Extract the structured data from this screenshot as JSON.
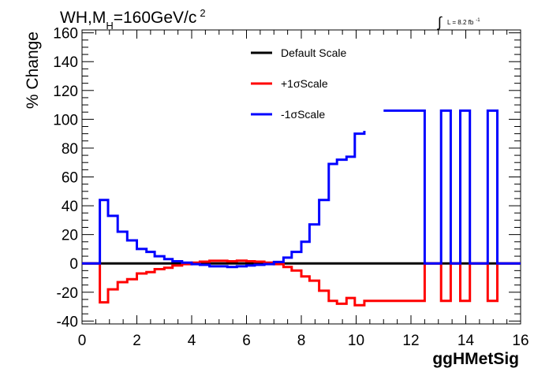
{
  "title": {
    "prefix": "WH,M",
    "subscript": "H",
    "suffix": "=160GeV/c",
    "superscript": "2"
  },
  "lumi": {
    "integral_symbol": "∫",
    "text": "L = 8.2 fb",
    "superscript": "-1"
  },
  "chart_data": {
    "type": "line",
    "xlabel": "ggHMetSig",
    "ylabel": "% Change",
    "xlim": [
      0,
      16
    ],
    "ylim": [
      -42,
      162
    ],
    "x_ticks": [
      0,
      2,
      4,
      6,
      8,
      10,
      12,
      14,
      16
    ],
    "y_ticks": [
      -40,
      -20,
      0,
      20,
      40,
      60,
      80,
      100,
      120,
      140,
      160
    ],
    "legend_position": "top-center",
    "series": [
      {
        "name": "Default Scale",
        "color": "#000000",
        "points": [
          [
            0,
            0
          ],
          [
            16,
            0
          ]
        ]
      },
      {
        "name": "+1σScale",
        "color": "#ff0000",
        "points": [
          [
            0,
            0
          ],
          [
            0.65,
            0
          ],
          [
            0.65,
            -27
          ],
          [
            0.95,
            -27
          ],
          [
            0.95,
            -18
          ],
          [
            1.3,
            -18
          ],
          [
            1.3,
            -13
          ],
          [
            1.65,
            -13
          ],
          [
            1.65,
            -11
          ],
          [
            2.0,
            -11
          ],
          [
            2.0,
            -7
          ],
          [
            2.35,
            -7
          ],
          [
            2.35,
            -6
          ],
          [
            2.65,
            -6
          ],
          [
            2.65,
            -4
          ],
          [
            3.0,
            -4
          ],
          [
            3.0,
            -3
          ],
          [
            3.3,
            -3
          ],
          [
            3.3,
            -1.5
          ],
          [
            3.65,
            -1.5
          ],
          [
            3.65,
            -0.5
          ],
          [
            4.0,
            -0.5
          ],
          [
            4.0,
            0.5
          ],
          [
            4.3,
            0.5
          ],
          [
            4.3,
            1.2
          ],
          [
            4.65,
            1.2
          ],
          [
            4.65,
            1.8
          ],
          [
            5.3,
            1.8
          ],
          [
            5.3,
            1.5
          ],
          [
            5.65,
            1.5
          ],
          [
            5.65,
            1.9
          ],
          [
            6.0,
            1.9
          ],
          [
            6.0,
            1.5
          ],
          [
            6.3,
            1.5
          ],
          [
            6.3,
            1.2
          ],
          [
            6.65,
            1.2
          ],
          [
            6.65,
            0.5
          ],
          [
            7.0,
            0.5
          ],
          [
            7.0,
            -0.5
          ],
          [
            7.35,
            -0.5
          ],
          [
            7.35,
            -2.5
          ],
          [
            7.65,
            -2.5
          ],
          [
            7.65,
            -5
          ],
          [
            8.0,
            -5
          ],
          [
            8.0,
            -9
          ],
          [
            8.3,
            -9
          ],
          [
            8.3,
            -12
          ],
          [
            8.65,
            -12
          ],
          [
            8.65,
            -19
          ],
          [
            9.0,
            -19
          ],
          [
            9.0,
            -26
          ],
          [
            9.3,
            -26
          ],
          [
            9.3,
            -28
          ],
          [
            9.65,
            -28
          ],
          [
            9.65,
            -24
          ],
          [
            9.95,
            -24
          ],
          [
            9.95,
            -29
          ],
          [
            10.3,
            -29
          ],
          [
            10.3,
            -26
          ],
          [
            12.5,
            -26
          ],
          [
            12.5,
            0
          ],
          [
            13.1,
            0
          ],
          [
            13.1,
            -26
          ],
          [
            13.45,
            -26
          ],
          [
            13.45,
            0
          ],
          [
            13.8,
            0
          ],
          [
            13.8,
            -26
          ],
          [
            14.15,
            -26
          ],
          [
            14.15,
            0
          ],
          [
            14.8,
            0
          ],
          [
            14.8,
            -26
          ],
          [
            15.15,
            -26
          ],
          [
            15.15,
            0
          ],
          [
            16,
            0
          ]
        ]
      },
      {
        "name": "-1σScale",
        "color": "#0000ff",
        "points": [
          [
            0,
            0
          ],
          [
            0.65,
            0
          ],
          [
            0.65,
            44
          ],
          [
            0.95,
            44
          ],
          [
            0.95,
            33
          ],
          [
            1.3,
            33
          ],
          [
            1.3,
            22
          ],
          [
            1.65,
            22
          ],
          [
            1.65,
            16
          ],
          [
            2.0,
            16
          ],
          [
            2.0,
            10
          ],
          [
            2.35,
            10
          ],
          [
            2.35,
            8
          ],
          [
            2.65,
            8
          ],
          [
            2.65,
            5
          ],
          [
            3.0,
            5
          ],
          [
            3.0,
            3
          ],
          [
            3.3,
            3
          ],
          [
            3.3,
            1.5
          ],
          [
            3.65,
            1.5
          ],
          [
            3.65,
            0.5
          ],
          [
            4.0,
            0.5
          ],
          [
            4.0,
            -0.5
          ],
          [
            4.3,
            -0.5
          ],
          [
            4.3,
            -1
          ],
          [
            4.65,
            -1
          ],
          [
            4.65,
            -2
          ],
          [
            5.3,
            -2
          ],
          [
            5.3,
            -2.5
          ],
          [
            5.65,
            -2.5
          ],
          [
            5.65,
            -2
          ],
          [
            6.0,
            -2
          ],
          [
            6.0,
            -1.5
          ],
          [
            6.3,
            -1.5
          ],
          [
            6.3,
            -1
          ],
          [
            6.65,
            -1
          ],
          [
            6.65,
            -0.5
          ],
          [
            7.0,
            -0.5
          ],
          [
            7.0,
            1
          ],
          [
            7.35,
            1
          ],
          [
            7.35,
            4
          ],
          [
            7.65,
            4
          ],
          [
            7.65,
            8
          ],
          [
            8.0,
            8
          ],
          [
            8.0,
            15
          ],
          [
            8.3,
            15
          ],
          [
            8.3,
            27
          ],
          [
            8.65,
            27
          ],
          [
            8.65,
            44
          ],
          [
            9.0,
            44
          ],
          [
            9.0,
            69
          ],
          [
            9.3,
            69
          ],
          [
            9.3,
            72
          ],
          [
            9.65,
            72
          ],
          [
            9.65,
            74
          ],
          [
            9.95,
            74
          ],
          [
            9.95,
            90
          ],
          [
            10.3,
            90
          ],
          [
            10.3,
            92
          ]
        ],
        "points_right": [
          [
            11.0,
            106
          ],
          [
            12.5,
            106
          ],
          [
            12.5,
            0
          ],
          [
            13.1,
            0
          ],
          [
            13.1,
            106
          ],
          [
            13.45,
            106
          ],
          [
            13.45,
            0
          ],
          [
            13.8,
            0
          ],
          [
            13.8,
            106
          ],
          [
            14.15,
            106
          ],
          [
            14.15,
            0
          ],
          [
            14.8,
            0
          ],
          [
            14.8,
            106
          ],
          [
            15.15,
            106
          ],
          [
            15.15,
            0
          ],
          [
            16,
            0
          ]
        ]
      }
    ]
  }
}
